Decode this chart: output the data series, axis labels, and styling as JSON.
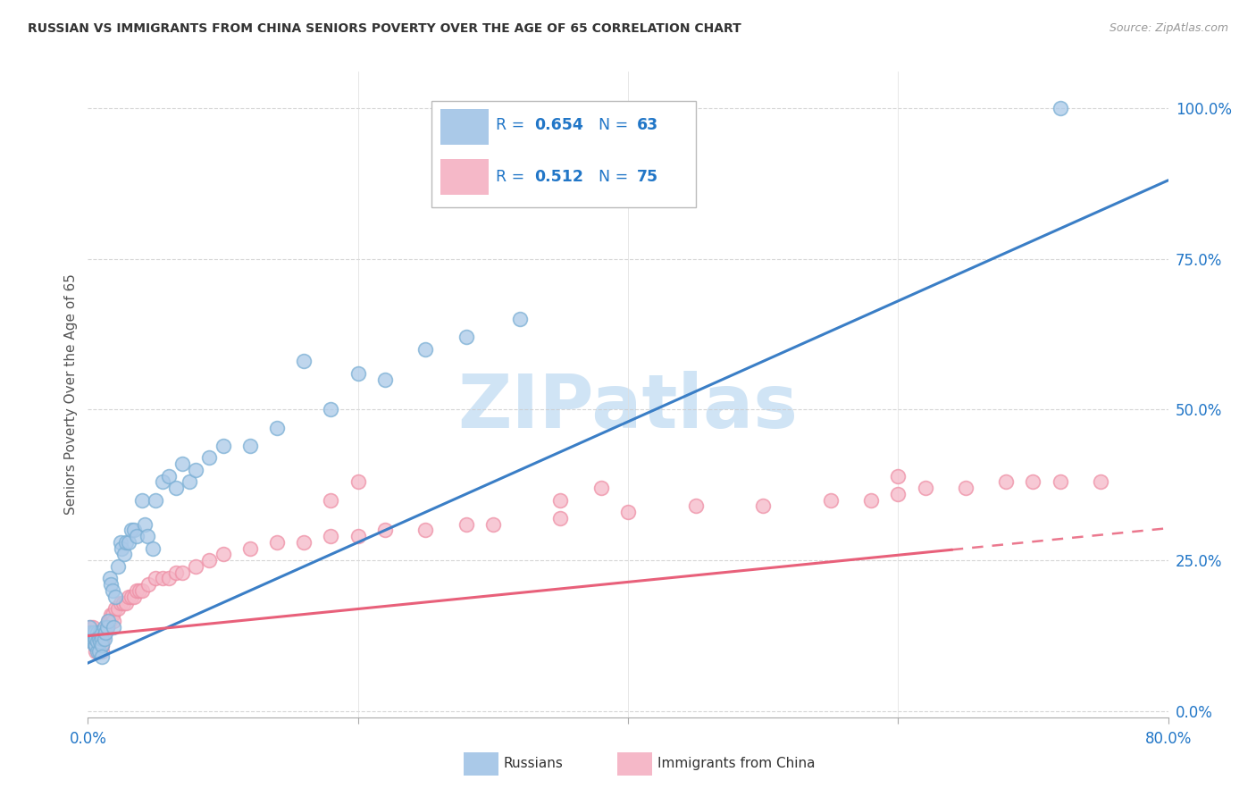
{
  "title": "RUSSIAN VS IMMIGRANTS FROM CHINA SENIORS POVERTY OVER THE AGE OF 65 CORRELATION CHART",
  "source": "Source: ZipAtlas.com",
  "ylabel": "Seniors Poverty Over the Age of 65",
  "xlim": [
    0.0,
    0.8
  ],
  "ylim": [
    -0.01,
    1.06
  ],
  "xtick_positions": [
    0.0,
    0.2,
    0.4,
    0.6,
    0.8
  ],
  "xticklabels": [
    "0.0%",
    "",
    "",
    "",
    "80.0%"
  ],
  "yticks_right": [
    0.0,
    0.25,
    0.5,
    0.75,
    1.0
  ],
  "ytick_right_labels": [
    "0.0%",
    "25.0%",
    "50.0%",
    "75.0%",
    "100.0%"
  ],
  "blue_fill": "#aac9e8",
  "blue_edge": "#7aafd4",
  "pink_fill": "#f5b8c8",
  "pink_edge": "#ee8fa5",
  "blue_line": "#3a7ec6",
  "pink_line": "#e8607a",
  "watermark_color": "#d0e4f5",
  "legend_label_blue": "Russians",
  "legend_label_pink": "Immigrants from China",
  "blue_r": "0.654",
  "blue_n": "63",
  "pink_r": "0.512",
  "pink_n": "75",
  "text_color": "#2176c7",
  "title_color": "#333333",
  "grid_color": "#cccccc",
  "rus_x": [
    0.002,
    0.003,
    0.003,
    0.004,
    0.004,
    0.005,
    0.005,
    0.005,
    0.006,
    0.006,
    0.007,
    0.007,
    0.007,
    0.008,
    0.008,
    0.009,
    0.009,
    0.01,
    0.01,
    0.01,
    0.012,
    0.012,
    0.013,
    0.014,
    0.015,
    0.016,
    0.017,
    0.018,
    0.019,
    0.02,
    0.022,
    0.024,
    0.025,
    0.027,
    0.028,
    0.03,
    0.032,
    0.034,
    0.036,
    0.04,
    0.042,
    0.044,
    0.048,
    0.05,
    0.055,
    0.06,
    0.065,
    0.07,
    0.075,
    0.08,
    0.09,
    0.1,
    0.12,
    0.14,
    0.16,
    0.18,
    0.2,
    0.22,
    0.25,
    0.28,
    0.32,
    0.72,
    0.001
  ],
  "rus_y": [
    0.13,
    0.12,
    0.115,
    0.13,
    0.115,
    0.12,
    0.11,
    0.13,
    0.11,
    0.12,
    0.13,
    0.1,
    0.115,
    0.12,
    0.1,
    0.115,
    0.13,
    0.12,
    0.11,
    0.09,
    0.14,
    0.12,
    0.13,
    0.14,
    0.15,
    0.22,
    0.21,
    0.2,
    0.14,
    0.19,
    0.24,
    0.28,
    0.27,
    0.26,
    0.28,
    0.28,
    0.3,
    0.3,
    0.29,
    0.35,
    0.31,
    0.29,
    0.27,
    0.35,
    0.38,
    0.39,
    0.37,
    0.41,
    0.38,
    0.4,
    0.42,
    0.44,
    0.44,
    0.47,
    0.58,
    0.5,
    0.56,
    0.55,
    0.6,
    0.62,
    0.65,
    1.0,
    0.14
  ],
  "chi_x": [
    0.002,
    0.003,
    0.003,
    0.004,
    0.004,
    0.005,
    0.005,
    0.006,
    0.006,
    0.007,
    0.007,
    0.008,
    0.008,
    0.009,
    0.009,
    0.01,
    0.01,
    0.01,
    0.011,
    0.012,
    0.013,
    0.014,
    0.015,
    0.016,
    0.017,
    0.018,
    0.019,
    0.02,
    0.022,
    0.024,
    0.026,
    0.028,
    0.03,
    0.032,
    0.034,
    0.036,
    0.038,
    0.04,
    0.045,
    0.05,
    0.055,
    0.06,
    0.065,
    0.07,
    0.08,
    0.09,
    0.1,
    0.12,
    0.14,
    0.16,
    0.18,
    0.2,
    0.22,
    0.25,
    0.28,
    0.3,
    0.35,
    0.4,
    0.45,
    0.5,
    0.55,
    0.58,
    0.6,
    0.62,
    0.65,
    0.68,
    0.7,
    0.72,
    0.75,
    0.001,
    0.18,
    0.2,
    0.35,
    0.38,
    0.6
  ],
  "chi_y": [
    0.14,
    0.13,
    0.12,
    0.14,
    0.12,
    0.13,
    0.11,
    0.12,
    0.1,
    0.13,
    0.11,
    0.12,
    0.1,
    0.11,
    0.13,
    0.12,
    0.1,
    0.11,
    0.12,
    0.13,
    0.14,
    0.14,
    0.15,
    0.15,
    0.16,
    0.16,
    0.15,
    0.17,
    0.17,
    0.18,
    0.18,
    0.18,
    0.19,
    0.19,
    0.19,
    0.2,
    0.2,
    0.2,
    0.21,
    0.22,
    0.22,
    0.22,
    0.23,
    0.23,
    0.24,
    0.25,
    0.26,
    0.27,
    0.28,
    0.28,
    0.29,
    0.29,
    0.3,
    0.3,
    0.31,
    0.31,
    0.32,
    0.33,
    0.34,
    0.34,
    0.35,
    0.35,
    0.36,
    0.37,
    0.37,
    0.38,
    0.38,
    0.38,
    0.38,
    0.13,
    0.35,
    0.38,
    0.35,
    0.37,
    0.39
  ]
}
